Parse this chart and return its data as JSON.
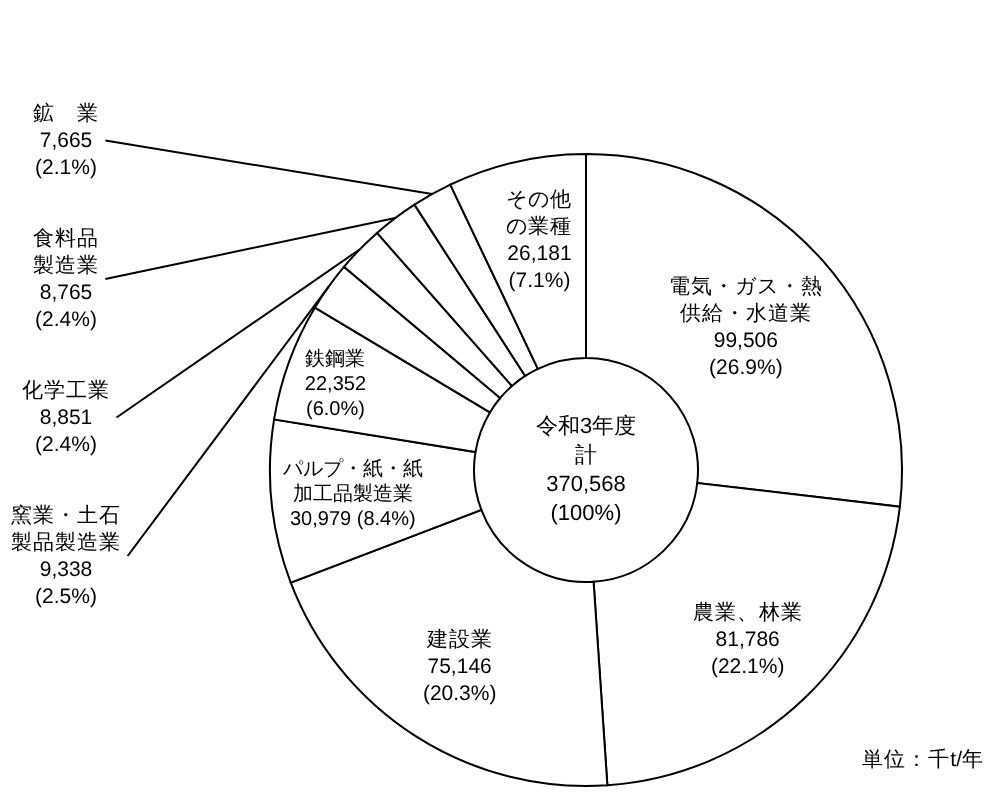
{
  "chart_data": {
    "type": "donut",
    "categories": [
      "電気・ガス・熱供給・水道業",
      "農業、林業",
      "建設業",
      "パルプ・紙・紙加工品製造業",
      "鉄鋼業",
      "窯業・土石製品製造業",
      "化学工業",
      "食料品製造業",
      "鉱　業",
      "その他の業種"
    ],
    "values": [
      99506,
      81786,
      75146,
      30979,
      22352,
      9338,
      8851,
      8765,
      7665,
      26181
    ],
    "colors": [
      "#ffffff",
      "#ffffff",
      "#ffffff",
      "#ffffff",
      "#ffffff",
      "#ffffff",
      "#ffffff",
      "#ffffff",
      "#ffffff",
      "#ffffff"
    ],
    "value_labels": [
      "99,506\n(26.9%)",
      "81,786\n(22.1%)",
      "75,146\n(20.3%)",
      "30,979\n(8.4%)",
      "22,352\n(6.0%)",
      "9,338\n(2.5%)",
      "8,851\n(2.4%)",
      "8,765\n(2.4%)",
      "7,665\n(2.1%)",
      "26,181\n(7.1%)"
    ],
    "annotations": [
      "令和3年度計\n370,568\n(100%)",
      "単位：千t/年"
    ]
  }
}
